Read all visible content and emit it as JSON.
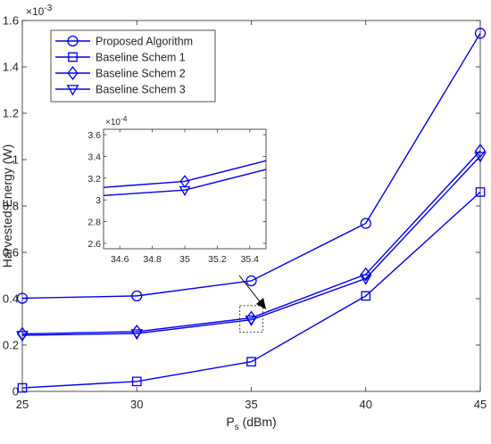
{
  "chart_data": {
    "type": "line",
    "xlabel_main": "P",
    "xlabel_sub": "s",
    "xlabel_unit": " (dBm)",
    "ylabel": "Harvested Energy (W)",
    "exponent_base": "×10",
    "exponent_power": "-3",
    "x": [
      25,
      30,
      35,
      40,
      45
    ],
    "xlim": [
      25,
      45
    ],
    "ylim": [
      0,
      1.6
    ],
    "xticks": [
      "25",
      "30",
      "35",
      "40",
      "45"
    ],
    "yticks": [
      "0",
      "0.2",
      "0.4",
      "0.6",
      "0.8",
      "1",
      "1.2",
      "1.4",
      "1.6"
    ],
    "grid": false,
    "legend_position": "top-left",
    "line_color": "#0000ee",
    "series": [
      {
        "name": "Proposed Algorithm",
        "marker": "circle",
        "values": [
          0.402,
          0.412,
          0.477,
          0.725,
          1.545
        ]
      },
      {
        "name": "Baseline Schem 1",
        "marker": "square",
        "values": [
          0.015,
          0.043,
          0.128,
          0.412,
          0.86
        ]
      },
      {
        "name": "Baseline Schem 2",
        "marker": "diamond",
        "values": [
          0.248,
          0.258,
          0.317,
          0.505,
          1.038
        ]
      },
      {
        "name": "Baseline Schem 3",
        "marker": "triangle-down",
        "values": [
          0.242,
          0.25,
          0.309,
          0.487,
          1.015
        ]
      }
    ],
    "inset": {
      "exponent_base": "×10",
      "exponent_power": "-4",
      "xlim": [
        34.5,
        35.5
      ],
      "ylim": [
        2.55,
        3.65
      ],
      "xticks": [
        "34.6",
        "34.8",
        "35",
        "35.2",
        "35.4"
      ],
      "yticks": [
        "2.6",
        "2.8",
        "3",
        "3.2",
        "3.4",
        "3.6"
      ],
      "series": [
        {
          "marker": "diamond",
          "points": [
            [
              34.5,
              3.115
            ],
            [
              35.0,
              3.17
            ],
            [
              35.5,
              3.36
            ]
          ]
        },
        {
          "marker": "triangle-down",
          "points": [
            [
              34.5,
              3.04
            ],
            [
              35.0,
              3.09
            ],
            [
              35.5,
              3.28
            ]
          ]
        }
      ]
    }
  }
}
